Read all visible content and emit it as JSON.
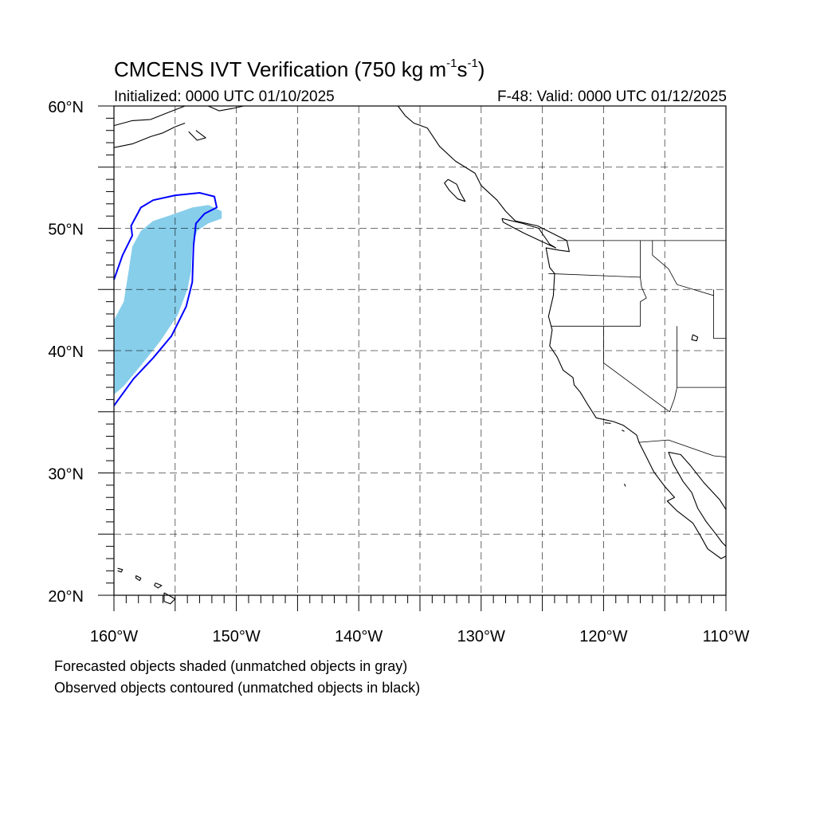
{
  "title": {
    "prefix": "CMCENS IVT Verification (750 kg m",
    "exp1": "-1",
    "mid": "s",
    "exp2": "-1",
    "suffix": ")"
  },
  "initialized": "Initialized: 0000 UTC 01/10/2025",
  "valid": "F-48: Valid: 0000 UTC 01/12/2025",
  "map": {
    "lon_min": -160,
    "lon_max": -110,
    "lat_min": 20,
    "lat_max": 60,
    "gridline_style": "dashed",
    "lat_labels": [
      {
        "value": 20,
        "text": "20°N"
      },
      {
        "value": 30,
        "text": "30°N"
      },
      {
        "value": 40,
        "text": "40°N"
      },
      {
        "value": 50,
        "text": "50°N"
      },
      {
        "value": 60,
        "text": "60°N"
      }
    ],
    "lon_labels": [
      {
        "value": -160,
        "text": "160°W"
      },
      {
        "value": -150,
        "text": "150°W"
      },
      {
        "value": -140,
        "text": "140°W"
      },
      {
        "value": -130,
        "text": "130°W"
      },
      {
        "value": -120,
        "text": "120°W"
      },
      {
        "value": -110,
        "text": "110°W"
      }
    ],
    "forecast_object": {
      "color": "#87CEEB",
      "polygon": [
        [
          -160,
          42.5
        ],
        [
          -159.2,
          44
        ],
        [
          -158.8,
          46.5
        ],
        [
          -158.5,
          48.5
        ],
        [
          -157.8,
          49.8
        ],
        [
          -156.8,
          50.6
        ],
        [
          -155.3,
          51.1
        ],
        [
          -153.6,
          51.7
        ],
        [
          -152.3,
          51.9
        ],
        [
          -151.2,
          51.4
        ],
        [
          -151.2,
          50.8
        ],
        [
          -152.3,
          50.4
        ],
        [
          -153.2,
          49.8
        ],
        [
          -153.6,
          48.5
        ],
        [
          -153.7,
          46.5
        ],
        [
          -154,
          45
        ],
        [
          -154.8,
          42.9
        ],
        [
          -156.2,
          40.8
        ],
        [
          -157.7,
          38.9
        ],
        [
          -159.2,
          37.1
        ],
        [
          -160,
          36.4
        ]
      ]
    },
    "observed_object": {
      "color": "#0000FF",
      "polyline": [
        [
          -160,
          45.8
        ],
        [
          -159.3,
          47.8
        ],
        [
          -158.5,
          49.4
        ],
        [
          -158.6,
          50.2
        ],
        [
          -157.8,
          51.7
        ],
        [
          -156.8,
          52.3
        ],
        [
          -155,
          52.7
        ],
        [
          -153,
          52.9
        ],
        [
          -151.8,
          52.6
        ],
        [
          -151.6,
          51.7
        ],
        [
          -152.6,
          51.2
        ],
        [
          -153.3,
          50.4
        ],
        [
          -153.5,
          48.5
        ],
        [
          -153.6,
          45.6
        ],
        [
          -154.1,
          43.6
        ],
        [
          -155.3,
          41.2
        ],
        [
          -156.8,
          39.4
        ],
        [
          -158.4,
          37.7
        ],
        [
          -160,
          35.5
        ]
      ]
    },
    "states": [
      [
        [
          -123.8,
          49
        ],
        [
          -110,
          49
        ]
      ],
      [
        [
          -124.5,
          46.3
        ],
        [
          -117,
          46
        ],
        [
          -116.9,
          45.2
        ],
        [
          -116.5,
          44.3
        ],
        [
          -117,
          44
        ],
        [
          -117,
          42
        ],
        [
          -124.3,
          42
        ]
      ],
      [
        [
          -117,
          49
        ],
        [
          -117,
          46
        ]
      ],
      [
        [
          -116,
          49
        ],
        [
          -116,
          47.8
        ],
        [
          -114.7,
          46.7
        ],
        [
          -114,
          45.4
        ],
        [
          -111,
          44.5
        ]
      ],
      [
        [
          -120,
          42
        ],
        [
          -120,
          39
        ],
        [
          -114.6,
          35
        ]
      ],
      [
        [
          -114,
          42
        ],
        [
          -114,
          37
        ],
        [
          -114.2,
          36.1
        ],
        [
          -114.6,
          35
        ]
      ],
      [
        [
          -114,
          37
        ],
        [
          -110,
          37
        ]
      ],
      [
        [
          -111,
          45
        ],
        [
          -111,
          41
        ],
        [
          -110,
          41
        ]
      ],
      [
        [
          -117.1,
          32.5
        ],
        [
          -114.7,
          32.7
        ],
        [
          -111,
          31.4
        ],
        [
          -110,
          31.3
        ]
      ]
    ],
    "coastlines": [
      [
        [
          -160,
          58.4
        ],
        [
          -158.5,
          58.8
        ],
        [
          -157,
          58.9
        ],
        [
          -155.5,
          59.5
        ],
        [
          -154.2,
          60
        ]
      ],
      [
        [
          -160,
          56.6
        ],
        [
          -158.5,
          56.9
        ],
        [
          -157,
          57.5
        ],
        [
          -156,
          57.8
        ],
        [
          -155,
          58.3
        ],
        [
          -154.2,
          58.6
        ]
      ],
      [
        [
          -153.9,
          57.9
        ],
        [
          -153.2,
          57.2
        ],
        [
          -152.5,
          57.4
        ],
        [
          -153.3,
          58
        ]
      ],
      [
        [
          -152.3,
          60
        ],
        [
          -151.4,
          59.6
        ],
        [
          -150.3,
          59.8
        ],
        [
          -149.4,
          60
        ]
      ],
      [
        [
          -147,
          60
        ],
        [
          -146,
          60
        ],
        [
          -144.5,
          60
        ]
      ],
      [
        [
          -136.8,
          60
        ],
        [
          -136.2,
          59.2
        ],
        [
          -135.5,
          58.6
        ],
        [
          -134.4,
          58.2
        ],
        [
          -133.4,
          56.7
        ],
        [
          -132.1,
          55.5
        ],
        [
          -130.5,
          54.5
        ],
        [
          -130,
          53.5
        ],
        [
          -128.7,
          52.3
        ],
        [
          -128,
          51.4
        ],
        [
          -127.2,
          50.6
        ],
        [
          -125.4,
          50.2
        ],
        [
          -124.2,
          49.6
        ],
        [
          -123,
          49
        ],
        [
          -122.8,
          48.1
        ],
        [
          -123.6,
          48.2
        ],
        [
          -124.7,
          48.4
        ],
        [
          -124.4,
          46.8
        ],
        [
          -124,
          46.3
        ],
        [
          -124.1,
          44.5
        ],
        [
          -124.5,
          42.8
        ],
        [
          -124.2,
          41.7
        ],
        [
          -124.4,
          40.4
        ],
        [
          -123.8,
          39.5
        ],
        [
          -123.3,
          38.4
        ],
        [
          -122.5,
          37.8
        ],
        [
          -122.4,
          37.2
        ],
        [
          -121.9,
          36.6
        ],
        [
          -121.3,
          35.6
        ],
        [
          -120.6,
          34.5
        ],
        [
          -119.2,
          34.2
        ],
        [
          -118.4,
          33.9
        ],
        [
          -117.3,
          33.1
        ],
        [
          -117.1,
          32.5
        ],
        [
          -116.5,
          31.3
        ],
        [
          -115.9,
          30.1
        ],
        [
          -115,
          28.9
        ],
        [
          -114.2,
          28
        ],
        [
          -114.8,
          27.7
        ],
        [
          -114,
          26.9
        ],
        [
          -112.7,
          25.9
        ],
        [
          -112.1,
          24.9
        ],
        [
          -111.5,
          23.8
        ],
        [
          -110.4,
          23
        ],
        [
          -110,
          23.2
        ]
      ],
      [
        [
          -114.7,
          31.7
        ],
        [
          -114.3,
          30.7
        ],
        [
          -113.5,
          29.3
        ],
        [
          -112.8,
          28.4
        ],
        [
          -112.3,
          27.1
        ],
        [
          -111.6,
          26
        ],
        [
          -110.9,
          25.1
        ],
        [
          -110.3,
          24.3
        ],
        [
          -110,
          24
        ]
      ],
      [
        [
          -110,
          27
        ],
        [
          -110.5,
          27.8
        ],
        [
          -111.8,
          29.2
        ],
        [
          -112.9,
          30.6
        ],
        [
          -113.7,
          31.5
        ],
        [
          -114.7,
          31.7
        ]
      ],
      [
        [
          -128.3,
          50.8
        ],
        [
          -126.6,
          50.4
        ],
        [
          -125.3,
          50
        ],
        [
          -124.4,
          48.7
        ],
        [
          -123.9,
          48.4
        ],
        [
          -125,
          48.9
        ],
        [
          -126.5,
          49.6
        ],
        [
          -128.2,
          50.5
        ],
        [
          -128.3,
          50.8
        ]
      ],
      [
        [
          -132.7,
          54
        ],
        [
          -132,
          53.6
        ],
        [
          -131.7,
          52.9
        ],
        [
          -131.3,
          52.2
        ],
        [
          -131.9,
          52.4
        ],
        [
          -132.6,
          53.1
        ],
        [
          -133,
          53.7
        ],
        [
          -132.7,
          54
        ]
      ],
      [
        [
          -112.7,
          41.3
        ],
        [
          -112.3,
          41.1
        ],
        [
          -112.4,
          40.8
        ],
        [
          -112.8,
          40.9
        ],
        [
          -112.7,
          41.3
        ]
      ],
      [
        [
          -155.9,
          20.2
        ],
        [
          -155,
          19.7
        ],
        [
          -155.4,
          19.3
        ],
        [
          -155.9,
          19.5
        ],
        [
          -155.9,
          20.2
        ]
      ],
      [
        [
          -156.6,
          21
        ],
        [
          -156.1,
          20.8
        ],
        [
          -156.4,
          20.6
        ],
        [
          -156.7,
          20.8
        ],
        [
          -156.6,
          21
        ]
      ],
      [
        [
          -158.2,
          21.6
        ],
        [
          -157.8,
          21.4
        ],
        [
          -157.9,
          21.2
        ],
        [
          -158.2,
          21.4
        ],
        [
          -158.2,
          21.6
        ]
      ],
      [
        [
          -159.7,
          22.2
        ],
        [
          -159.3,
          22.1
        ],
        [
          -159.4,
          21.9
        ],
        [
          -159.7,
          22
        ]
      ],
      [
        [
          -118.5,
          33.5
        ],
        [
          -118.3,
          33.4
        ]
      ],
      [
        [
          -119.9,
          34.1
        ],
        [
          -119.4,
          34.05
        ]
      ],
      [
        [
          -118.3,
          29.1
        ],
        [
          -118.2,
          28.9
        ]
      ]
    ]
  }
}
